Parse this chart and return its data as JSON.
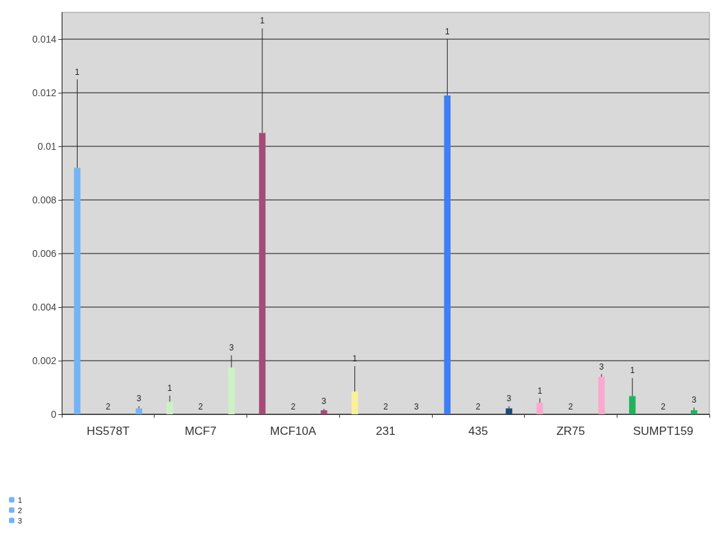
{
  "chart_data": {
    "type": "bar",
    "categories": [
      "HS578T",
      "MCF7",
      "MCF10A",
      "231",
      "435",
      "ZR75",
      "SUMPT159"
    ],
    "series": [
      {
        "name": "1",
        "color": "#74b4f4",
        "colors": [
          "#74b4f4",
          "#ccf2c4",
          "#a64a78",
          "#fbf09a",
          "#3f7ef5",
          "#f9a9cf",
          "#20b35c"
        ],
        "values": [
          0.0092,
          0.00047,
          0.0105,
          0.00085,
          0.0119,
          0.00043,
          0.00068
        ],
        "errors": [
          [
            0.0092,
            0.0125
          ],
          [
            0.00047,
            0.0007
          ],
          [
            0.0105,
            0.0144
          ],
          [
            0.00085,
            0.0018
          ],
          [
            0.0119,
            0.014
          ],
          [
            0.00043,
            0.0006
          ],
          [
            0.00068,
            0.00135
          ]
        ]
      },
      {
        "name": "2",
        "color": "#74b4f4",
        "colors": [
          "#74b4f4",
          "#ccf2c4",
          "#a64a78",
          "#fbf09a",
          "#3f7ef5",
          "#f9a9cf",
          "#20b35c"
        ],
        "values": [
          0,
          0,
          0,
          0,
          0,
          0,
          0
        ]
      },
      {
        "name": "3",
        "color": "#74b4f4",
        "colors": [
          "#74b4f4",
          "#ccf2c4",
          "#a64a78",
          "#9a6fd0",
          "#1c4a7a",
          "#f9a9cf",
          "#20b35c"
        ],
        "values": [
          0.00022,
          0.00175,
          0.00015,
          0,
          0.00022,
          0.0014,
          0.00015
        ],
        "errors": [
          [
            0.00022,
            0.0003
          ],
          [
            0.00175,
            0.0022
          ],
          [
            0.00015,
            0.0002
          ],
          null,
          [
            0.00022,
            0.0003
          ],
          [
            0.0014,
            0.0015
          ],
          [
            0.00015,
            0.00025
          ]
        ]
      }
    ],
    "ylim": [
      0,
      0.015
    ],
    "yticks": [
      0,
      0.002,
      0.004,
      0.006,
      0.008,
      0.01,
      0.012,
      0.014
    ],
    "grid": "y",
    "legend": "bottom left"
  }
}
